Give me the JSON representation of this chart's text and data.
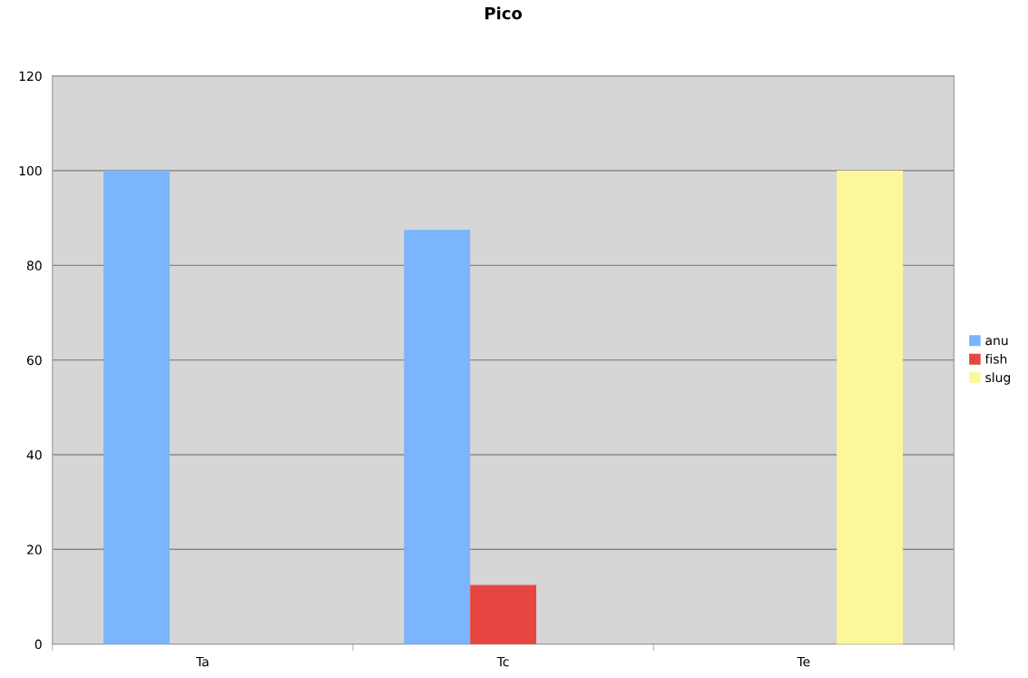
{
  "chart_data": {
    "type": "bar",
    "title": "Pico",
    "categories": [
      "Ta",
      "Tc",
      "Te"
    ],
    "series": [
      {
        "name": "anu",
        "color": "#7ab5fd",
        "values": [
          100,
          87.5,
          null
        ]
      },
      {
        "name": "fish",
        "color": "#e54640",
        "values": [
          null,
          12.5,
          null
        ]
      },
      {
        "name": "slug",
        "color": "#fdf79c",
        "values": [
          null,
          null,
          100
        ]
      }
    ],
    "ylim": [
      0,
      120
    ],
    "yticks": [
      0,
      20,
      40,
      60,
      80,
      100,
      120
    ],
    "grid": "y",
    "legend": "right"
  }
}
